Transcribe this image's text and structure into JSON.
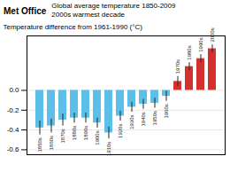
{
  "chart_data": {
    "type": "bar",
    "title": "Global average temperature 1850-2009",
    "subtitle": "2000s warmest decade",
    "annotations": [
      "Met Office"
    ],
    "ylabel": "Temperature difference from 1961-1990 (°C)",
    "categories": [
      "1850s",
      "1860s",
      "1870s",
      "1880s",
      "1890s",
      "1900s",
      "1910s",
      "1920s",
      "1930s",
      "1940s",
      "1950s",
      "1960s",
      "1970s",
      "1980s",
      "1990s",
      "2000s"
    ],
    "values": [
      -0.38,
      -0.36,
      -0.3,
      -0.28,
      -0.28,
      -0.33,
      -0.43,
      -0.26,
      -0.17,
      -0.14,
      -0.13,
      -0.06,
      0.09,
      0.24,
      0.32,
      0.42
    ],
    "errors": [
      0.07,
      0.07,
      0.06,
      0.05,
      0.05,
      0.05,
      0.06,
      0.05,
      0.05,
      0.05,
      0.05,
      0.05,
      0.05,
      0.04,
      0.04,
      0.04
    ],
    "colors": [
      "#5bbfea",
      "#5bbfea",
      "#5bbfea",
      "#5bbfea",
      "#5bbfea",
      "#5bbfea",
      "#5bbfea",
      "#5bbfea",
      "#5bbfea",
      "#5bbfea",
      "#5bbfea",
      "#5bbfea",
      "#d43030",
      "#d43030",
      "#d43030",
      "#d43030"
    ],
    "ylim": [
      -0.65,
      0.55
    ],
    "yticks": [
      -0.6,
      -0.4,
      -0.2,
      {
        "value": 0,
        "label": "0.0"
      }
    ],
    "grid": true,
    "tick_labels": "y"
  }
}
